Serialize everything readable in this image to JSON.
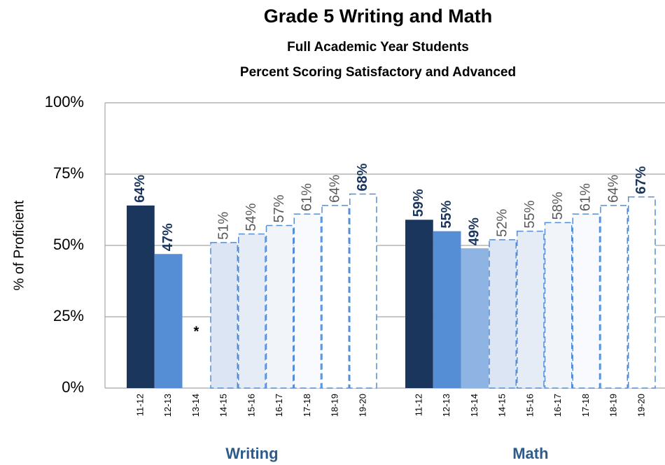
{
  "chart_data": {
    "type": "bar",
    "title": "Grade 5 Writing and Math",
    "subtitle": [
      "Full Academic Year Students",
      "Percent Scoring Satisfactory and Advanced"
    ],
    "y_axis_label": "% of Proficient",
    "ylim": [
      0,
      100
    ],
    "yticks": [
      {
        "value": 0,
        "label": "0%"
      },
      {
        "value": 25,
        "label": "25%"
      },
      {
        "value": 50,
        "label": "50%"
      },
      {
        "value": 75,
        "label": "75%"
      },
      {
        "value": 100,
        "label": "100%"
      }
    ],
    "grid": true,
    "groups": [
      {
        "name": "Writing",
        "categories": [
          "11-12",
          "12-13",
          "13-14",
          "14-15",
          "15-16",
          "16-17",
          "17-18",
          "18-19",
          "19-20"
        ],
        "values": [
          64,
          47,
          null,
          51,
          54,
          57,
          61,
          64,
          68
        ],
        "value_labels": [
          "64%",
          "47%",
          "*",
          "51%",
          "54%",
          "57%",
          "61%",
          "64%",
          "68%"
        ],
        "colors": [
          "#1b365d",
          "#558ed5",
          "#8eb4e3",
          "#dbe5f4",
          "#e6ecf5",
          "#f1f5fa",
          "#f8fafd",
          "#ffffff",
          "#ffffff"
        ],
        "dashed": [
          false,
          false,
          false,
          true,
          true,
          true,
          true,
          true,
          true
        ],
        "bold_labels": [
          true,
          true,
          false,
          false,
          false,
          false,
          false,
          false,
          true
        ]
      },
      {
        "name": "Math",
        "categories": [
          "11-12",
          "12-13",
          "13-14",
          "14-15",
          "15-16",
          "16-17",
          "17-18",
          "18-19",
          "19-20"
        ],
        "values": [
          59,
          55,
          49,
          52,
          55,
          58,
          61,
          64,
          67
        ],
        "value_labels": [
          "59%",
          "55%",
          "49%",
          "52%",
          "55%",
          "58%",
          "61%",
          "64%",
          "67%"
        ],
        "colors": [
          "#1b365d",
          "#558ed5",
          "#8eb4e3",
          "#dbe5f4",
          "#e6ecf5",
          "#f1f5fa",
          "#f8fafd",
          "#ffffff",
          "#ffffff"
        ],
        "dashed": [
          false,
          false,
          false,
          true,
          true,
          true,
          true,
          true,
          true
        ],
        "bold_labels": [
          true,
          true,
          true,
          false,
          false,
          false,
          false,
          false,
          true
        ]
      }
    ]
  }
}
